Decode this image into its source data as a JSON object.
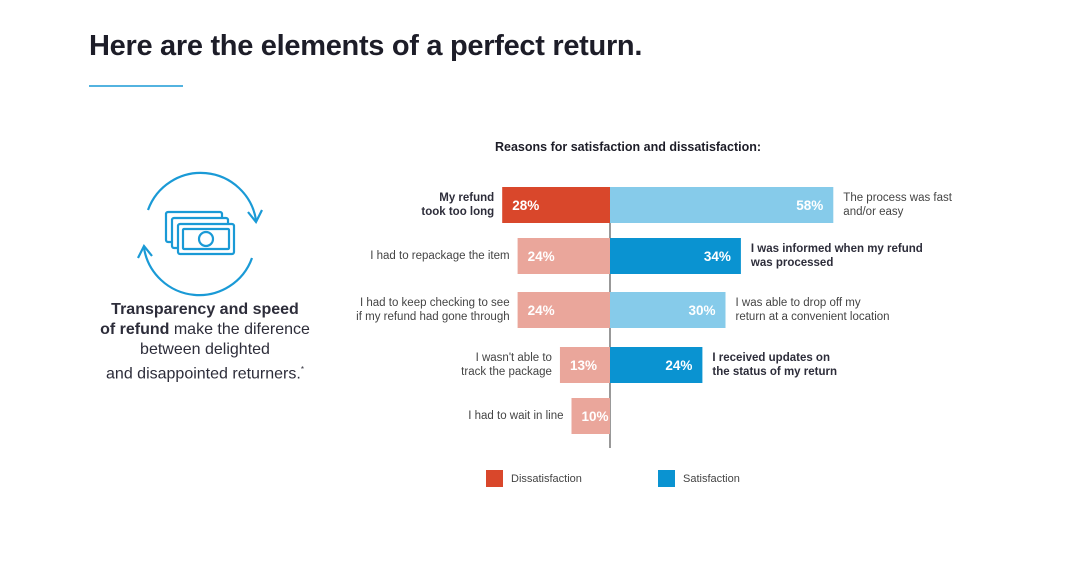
{
  "header": {
    "title": "Here are the elements of a perfect return."
  },
  "callout": {
    "bold": "Transparency and speed\nof refund",
    "text": "make the diference\nbetween delighted\nand disappointed returners.",
    "mark": "*"
  },
  "chart_data": {
    "type": "diverging-bar",
    "title": "Reasons for satisfaction and dissatisfaction:",
    "series": [
      {
        "name": "Dissatisfaction",
        "side": "left",
        "color": "#d9472b",
        "light_color": "#eaa69b",
        "labels": [
          "My refund\ntook too long",
          "I had to repackage the item",
          "I had to keep checking to see\nif my refund had gone through",
          "I wasn't able to\ntrack the package",
          "I had to wait in line"
        ],
        "values": [
          28,
          24,
          24,
          13,
          10
        ],
        "value_labels": [
          "28%",
          "24%",
          "24%",
          "13%",
          "10%"
        ],
        "highlight": [
          true,
          false,
          false,
          false,
          false
        ]
      },
      {
        "name": "Satisfaction",
        "side": "right",
        "color": "#0a93d1",
        "light_color": "#86cbea",
        "labels": [
          "The process was fast\nand/or easy",
          "I was informed when my refund\nwas processed",
          "I was able to drop off my\nreturn at a convenient location",
          "I received updates on\nthe status of my return"
        ],
        "values": [
          58,
          34,
          30,
          24
        ],
        "value_labels": [
          "58%",
          "34%",
          "30%",
          "24%"
        ],
        "highlight": [
          false,
          true,
          false,
          true
        ]
      }
    ]
  }
}
